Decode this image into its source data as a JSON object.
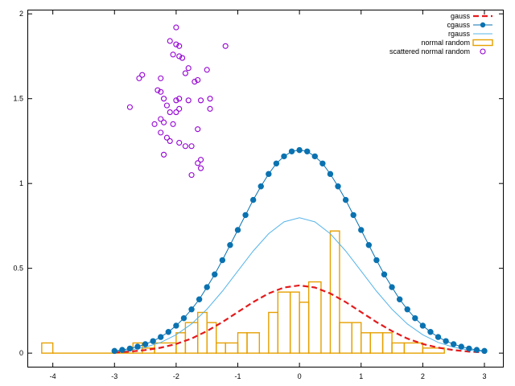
{
  "chart_data": {
    "type": "line",
    "title": "",
    "xlabel": "",
    "ylabel": "",
    "xlim": [
      -4.4,
      3.3
    ],
    "ylim": [
      -0.08,
      2.02
    ],
    "grid": false,
    "legend_position": "top-right",
    "x_ticks": [
      "-4",
      "-3",
      "-2",
      "-1",
      "0",
      "1",
      "2",
      "3"
    ],
    "x_tick_values": [
      -4,
      -3,
      -2,
      -1,
      0,
      1,
      2,
      3
    ],
    "y_ticks": [
      "0",
      "0.5",
      "1",
      "1.5",
      "2"
    ],
    "y_tick_values": [
      0,
      0.5,
      1,
      1.5,
      2
    ],
    "colors": {
      "gauss": "#e41a1c",
      "cgauss": "#0a72b0",
      "rgauss": "#56b4e9",
      "normal_random": "#e6a000",
      "scattered": "#9400d3",
      "axes": "#000000"
    },
    "series": [
      {
        "name": "gauss",
        "style": "dashed-line",
        "function": "exp(-x^2/2)/sqrt(2*pi)",
        "x": [
          -3.0,
          -2.75,
          -2.5,
          -2.25,
          -2.0,
          -1.75,
          -1.5,
          -1.25,
          -1.0,
          -0.75,
          -0.5,
          -0.25,
          0.0,
          0.25,
          0.5,
          0.75,
          1.0,
          1.25,
          1.5,
          1.75,
          2.0,
          2.25,
          2.5,
          2.75,
          3.0
        ],
        "y": [
          0.004,
          0.009,
          0.018,
          0.032,
          0.054,
          0.086,
          0.13,
          0.183,
          0.242,
          0.301,
          0.352,
          0.387,
          0.399,
          0.387,
          0.352,
          0.301,
          0.242,
          0.183,
          0.13,
          0.086,
          0.054,
          0.032,
          0.018,
          0.009,
          0.004
        ]
      },
      {
        "name": "cgauss",
        "style": "line-with-points",
        "function": "3*exp(-x^2/2)/sqrt(2*pi)",
        "x": [
          -3.0,
          -2.875,
          -2.75,
          -2.625,
          -2.5,
          -2.375,
          -2.25,
          -2.125,
          -2.0,
          -1.875,
          -1.75,
          -1.625,
          -1.5,
          -1.375,
          -1.25,
          -1.125,
          -1.0,
          -0.875,
          -0.75,
          -0.625,
          -0.5,
          -0.375,
          -0.25,
          -0.125,
          0.0,
          0.125,
          0.25,
          0.375,
          0.5,
          0.625,
          0.75,
          0.875,
          1.0,
          1.125,
          1.25,
          1.375,
          1.5,
          1.625,
          1.75,
          1.875,
          2.0,
          2.125,
          2.25,
          2.375,
          2.5,
          2.625,
          2.75,
          2.875,
          3.0
        ],
        "y": [
          0.013,
          0.019,
          0.027,
          0.038,
          0.053,
          0.071,
          0.095,
          0.125,
          0.162,
          0.206,
          0.258,
          0.317,
          0.389,
          0.464,
          0.548,
          0.637,
          0.726,
          0.814,
          0.903,
          0.983,
          1.056,
          1.118,
          1.16,
          1.189,
          1.197,
          1.189,
          1.16,
          1.118,
          1.056,
          0.983,
          0.903,
          0.814,
          0.726,
          0.637,
          0.548,
          0.464,
          0.389,
          0.317,
          0.258,
          0.206,
          0.162,
          0.125,
          0.095,
          0.071,
          0.053,
          0.038,
          0.027,
          0.019,
          0.013
        ]
      },
      {
        "name": "rgauss",
        "style": "thin-line",
        "function": "2*exp(-x^2/2)/sqrt(2*pi)",
        "x": [
          -3.0,
          -2.75,
          -2.5,
          -2.25,
          -2.0,
          -1.75,
          -1.5,
          -1.25,
          -1.0,
          -0.75,
          -0.5,
          -0.25,
          0.0,
          0.25,
          0.5,
          0.75,
          1.0,
          1.25,
          1.5,
          1.75,
          2.0,
          2.25,
          2.5,
          2.75,
          3.0
        ],
        "y": [
          0.009,
          0.018,
          0.035,
          0.063,
          0.108,
          0.172,
          0.259,
          0.365,
          0.484,
          0.602,
          0.704,
          0.774,
          0.798,
          0.774,
          0.704,
          0.602,
          0.484,
          0.365,
          0.259,
          0.172,
          0.108,
          0.063,
          0.035,
          0.018,
          0.009
        ]
      },
      {
        "name": "normal random",
        "style": "histogram-boxes",
        "bins": [
          {
            "x0": -4.18,
            "x1": -4.0,
            "y": 0.06
          },
          {
            "x0": -4.0,
            "x1": -2.7,
            "y": 0.0
          },
          {
            "x0": -2.7,
            "x1": -2.55,
            "y": 0.06
          },
          {
            "x0": -2.55,
            "x1": -2.35,
            "y": 0.03
          },
          {
            "x0": -2.35,
            "x1": -2.0,
            "y": 0.06
          },
          {
            "x0": -2.0,
            "x1": -1.85,
            "y": 0.12
          },
          {
            "x0": -1.85,
            "x1": -1.65,
            "y": 0.18
          },
          {
            "x0": -1.65,
            "x1": -1.5,
            "y": 0.24
          },
          {
            "x0": -1.5,
            "x1": -1.35,
            "y": 0.18
          },
          {
            "x0": -1.35,
            "x1": -1.2,
            "y": 0.06
          },
          {
            "x0": -1.2,
            "x1": -1.0,
            "y": 0.06
          },
          {
            "x0": -1.0,
            "x1": -0.85,
            "y": 0.12
          },
          {
            "x0": -0.85,
            "x1": -0.65,
            "y": 0.12
          },
          {
            "x0": -0.65,
            "x1": -0.5,
            "y": 0.0
          },
          {
            "x0": -0.5,
            "x1": -0.35,
            "y": 0.24
          },
          {
            "x0": -0.35,
            "x1": -0.15,
            "y": 0.36
          },
          {
            "x0": -0.15,
            "x1": 0.0,
            "y": 0.36
          },
          {
            "x0": 0.0,
            "x1": 0.15,
            "y": 0.3
          },
          {
            "x0": 0.15,
            "x1": 0.35,
            "y": 0.42
          },
          {
            "x0": 0.35,
            "x1": 0.5,
            "y": 0.0
          },
          {
            "x0": 0.5,
            "x1": 0.65,
            "y": 0.72
          },
          {
            "x0": 0.65,
            "x1": 0.85,
            "y": 0.18
          },
          {
            "x0": 0.85,
            "x1": 1.0,
            "y": 0.18
          },
          {
            "x0": 1.0,
            "x1": 1.15,
            "y": 0.12
          },
          {
            "x0": 1.15,
            "x1": 1.35,
            "y": 0.12
          },
          {
            "x0": 1.35,
            "x1": 1.5,
            "y": 0.12
          },
          {
            "x0": 1.5,
            "x1": 1.7,
            "y": 0.06
          },
          {
            "x0": 1.7,
            "x1": 2.0,
            "y": 0.06
          },
          {
            "x0": 2.0,
            "x1": 2.35,
            "y": 0.03
          }
        ]
      },
      {
        "name": "scattered normal random",
        "style": "open-circles",
        "points": [
          [
            -2.0,
            1.92
          ],
          [
            -2.1,
            1.84
          ],
          [
            -2.0,
            1.82
          ],
          [
            -1.95,
            1.81
          ],
          [
            -1.2,
            1.81
          ],
          [
            -2.05,
            1.76
          ],
          [
            -1.95,
            1.75
          ],
          [
            -1.9,
            1.74
          ],
          [
            -1.8,
            1.68
          ],
          [
            -1.5,
            1.67
          ],
          [
            -1.85,
            1.65
          ],
          [
            -2.55,
            1.64
          ],
          [
            -2.6,
            1.62
          ],
          [
            -2.25,
            1.62
          ],
          [
            -1.65,
            1.61
          ],
          [
            -1.7,
            1.6
          ],
          [
            -2.3,
            1.55
          ],
          [
            -2.25,
            1.54
          ],
          [
            -2.2,
            1.5
          ],
          [
            -2.0,
            1.49
          ],
          [
            -1.8,
            1.49
          ],
          [
            -1.95,
            1.5
          ],
          [
            -1.45,
            1.5
          ],
          [
            -1.6,
            1.49
          ],
          [
            -2.15,
            1.46
          ],
          [
            -2.75,
            1.45
          ],
          [
            -1.95,
            1.44
          ],
          [
            -1.45,
            1.44
          ],
          [
            -2.1,
            1.42
          ],
          [
            -2.0,
            1.42
          ],
          [
            -2.25,
            1.38
          ],
          [
            -2.2,
            1.36
          ],
          [
            -2.35,
            1.35
          ],
          [
            -2.05,
            1.35
          ],
          [
            -1.65,
            1.32
          ],
          [
            -2.25,
            1.3
          ],
          [
            -2.15,
            1.27
          ],
          [
            -2.1,
            1.25
          ],
          [
            -1.95,
            1.24
          ],
          [
            -1.85,
            1.22
          ],
          [
            -1.75,
            1.22
          ],
          [
            -2.2,
            1.17
          ],
          [
            -1.6,
            1.14
          ],
          [
            -1.65,
            1.12
          ],
          [
            -1.6,
            1.09
          ],
          [
            -1.75,
            1.05
          ]
        ]
      }
    ]
  }
}
